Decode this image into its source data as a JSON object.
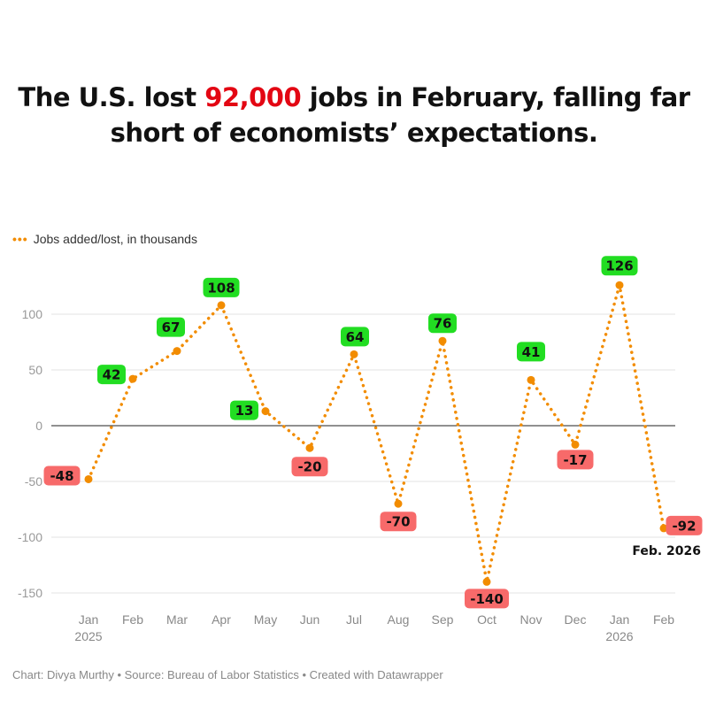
{
  "title": {
    "pre": "The U.S. lost ",
    "highlight": "92,000",
    "post": " jobs in February, falling far short of economists’ expectations.",
    "highlight_color": "#e30613"
  },
  "footer": "Chart: Divya Murthy • Source: Bureau of Labor Statistics • Created with Datawrapper",
  "chart_data": {
    "type": "line",
    "categories": [
      "Jan",
      "Feb",
      "Mar",
      "Apr",
      "May",
      "Jun",
      "Jul",
      "Aug",
      "Sep",
      "Oct",
      "Nov",
      "Dec",
      "Jan",
      "Feb"
    ],
    "year_labels": {
      "0": "2025",
      "12": "2026"
    },
    "series": [
      {
        "name": "Jobs added/lost, in thousands",
        "values": [
          -48,
          42,
          67,
          108,
          13,
          -20,
          64,
          -70,
          76,
          -140,
          41,
          -17,
          126,
          -92
        ],
        "color": "#f28c00",
        "style": "dotted"
      }
    ],
    "yticks": [
      -150,
      -100,
      -50,
      0,
      50,
      100
    ],
    "ylim": [
      -150,
      126
    ],
    "grid": true,
    "legend": "top-left",
    "positive_label_color": "#22dd22",
    "negative_label_color": "#f76a6a",
    "annotation": "Feb. 2026"
  }
}
